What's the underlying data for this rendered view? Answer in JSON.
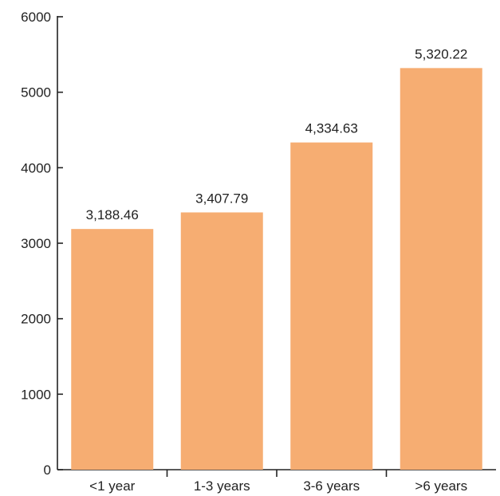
{
  "chart_data": {
    "type": "bar",
    "title": "",
    "xlabel": "",
    "ylabel": "",
    "categories": [
      "<1 year",
      "1-3 years",
      "3-6 years",
      ">6 years"
    ],
    "values": [
      3188.46,
      3407.79,
      4334.63,
      5320.22
    ],
    "value_labels": [
      "3,188.46",
      "3,407.79",
      "4,334.63",
      "5,320.22"
    ],
    "ylim": [
      0,
      6000
    ],
    "yticks": [
      0,
      1000,
      2000,
      3000,
      4000,
      5000,
      6000
    ],
    "ytick_labels": [
      "0",
      "1000",
      "2000",
      "3000",
      "4000",
      "5000",
      "6000"
    ],
    "grid": false,
    "legend": "none",
    "colors": {
      "bar": "#F6AD72",
      "axis": "#222222",
      "text": "#222222"
    }
  }
}
